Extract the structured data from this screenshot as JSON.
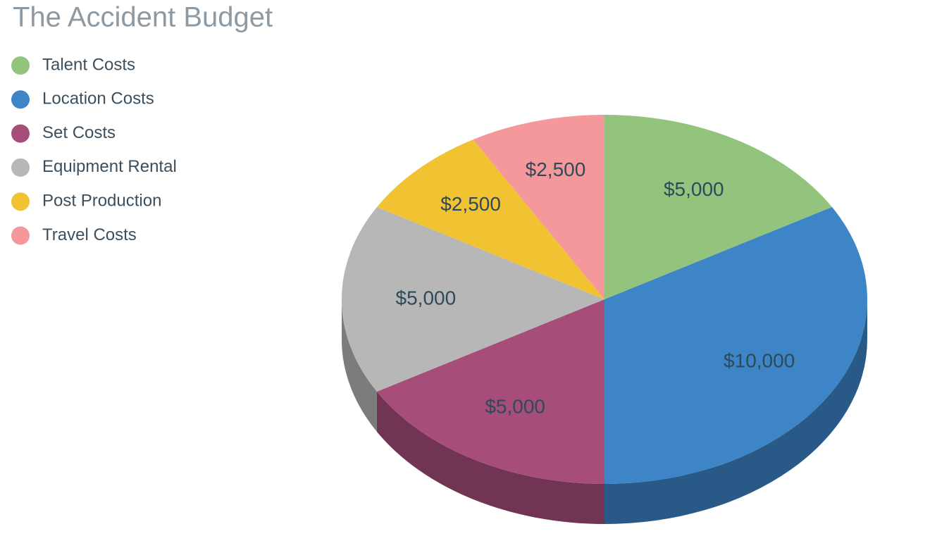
{
  "chart_data": {
    "type": "pie",
    "title": "The Accident Budget",
    "categories": [
      "Talent Costs",
      "Location Costs",
      "Set Costs",
      "Equipment Rental",
      "Post Production",
      "Travel Costs"
    ],
    "values": [
      5000,
      10000,
      5000,
      5000,
      2500,
      2500
    ],
    "value_labels": [
      "$5,000",
      "$10,000",
      "$5,000",
      "$5,000",
      "$2,500",
      "$2,500"
    ],
    "colors": [
      "#93c47d",
      "#3d85c6",
      "#a64d79",
      "#b7b7b7",
      "#f1c232",
      "#f4989c"
    ],
    "legend": "left"
  }
}
